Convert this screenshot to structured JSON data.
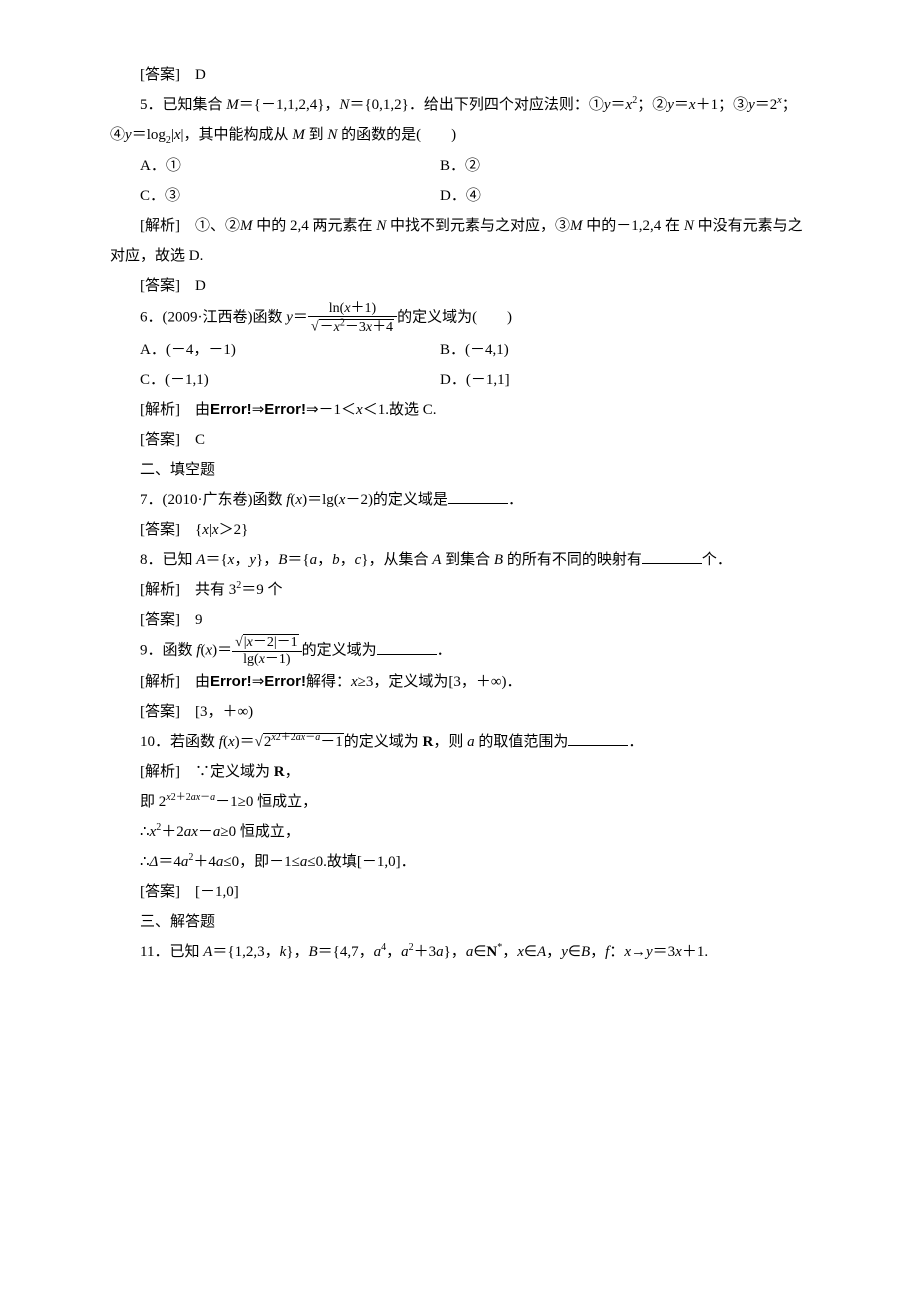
{
  "q4": {
    "answer_label": "[答案]　D"
  },
  "q5": {
    "stem_part1": "5．已知集合 ",
    "set_m": "M＝{－1,1,2,4}，N＝{0,1,2}．",
    "stem_part2": "给出下列四个对应法则：①y＝x²；②y＝x＋1；③y＝2ˣ；④y＝log₂|x|，其中能构成从 M 到 N 的函数的是(　　)",
    "opt_a": "A．①",
    "opt_b": "B．②",
    "opt_c": "C．③",
    "opt_d": "D．④",
    "analysis_label": "[解析]　①、②M 中的 2,4 两元素在 N 中找不到元素与之对应，③M 中的－1,2,4 在 N 中没有元素与之对应，故选 D.",
    "answer_label": "[答案]　D"
  },
  "q6": {
    "stem_part1": "6．(2009·江西卷)函数 y＝",
    "frac_num": "ln(x＋1)",
    "frac_den_sqrt": "－x²－3x＋4",
    "stem_part2": "的定义域为(　　)",
    "opt_a": "A．(－4，－1)",
    "opt_b": "B．(－4,1)",
    "opt_c": "C．(－1,1)",
    "opt_d": "D．(－1,1]",
    "analysis_label": "[解析]　由Error!⇒Error!⇒－1＜x＜1.故选 C.",
    "answer_label": "[答案]　C"
  },
  "section2": "二、填空题",
  "q7": {
    "stem": "7．(2010·广东卷)函数 f(x)＝lg(x－2)的定义域是",
    "answer_label": "[答案]　{x|x＞2}"
  },
  "q8": {
    "stem_part1": "8．已知 A＝{x，y}，B＝{a，b，c}，从集合 A 到集合 B 的所有不同的映射有",
    "stem_part2": "个．",
    "analysis_label": "[解析]　共有 3²＝9 个",
    "answer_label": "[答案]　9"
  },
  "q9": {
    "stem_part1": "9．函数 f(x)＝",
    "frac_num_sqrt": "|x－2|－1",
    "frac_den": "lg(x－1)",
    "stem_part2": "的定义域为",
    "analysis_label": "[解析]　由Error!⇒Error!解得：x≥3，定义域为[3，＋∞)．",
    "answer_label": "[答案]　[3，＋∞)"
  },
  "q10": {
    "stem_part1": "10．若函数 f(x)＝",
    "sqrt_inner": "2^{x²＋2ax－a}－1",
    "stem_part2": "的定义域为 R，则 a 的取值范围为",
    "analysis_l1": "[解析]　∵定义域为 R，",
    "analysis_l2": "即 2^{x²＋2ax－a}－1≥0 恒成立，",
    "analysis_l3": "∴x²＋2ax－a≥0 恒成立，",
    "analysis_l4": "∴Δ＝4a²＋4a≤0，即－1≤a≤0.故填[－1,0]．",
    "answer_label": "[答案]　[－1,0]"
  },
  "section3": "三、解答题",
  "q11": {
    "stem": "11．已知 A＝{1,2,3，k}，B＝{4,7，a⁴，a²＋3a}，a∈N*，x∈A，y∈B，f：x→y＝3x＋1."
  }
}
